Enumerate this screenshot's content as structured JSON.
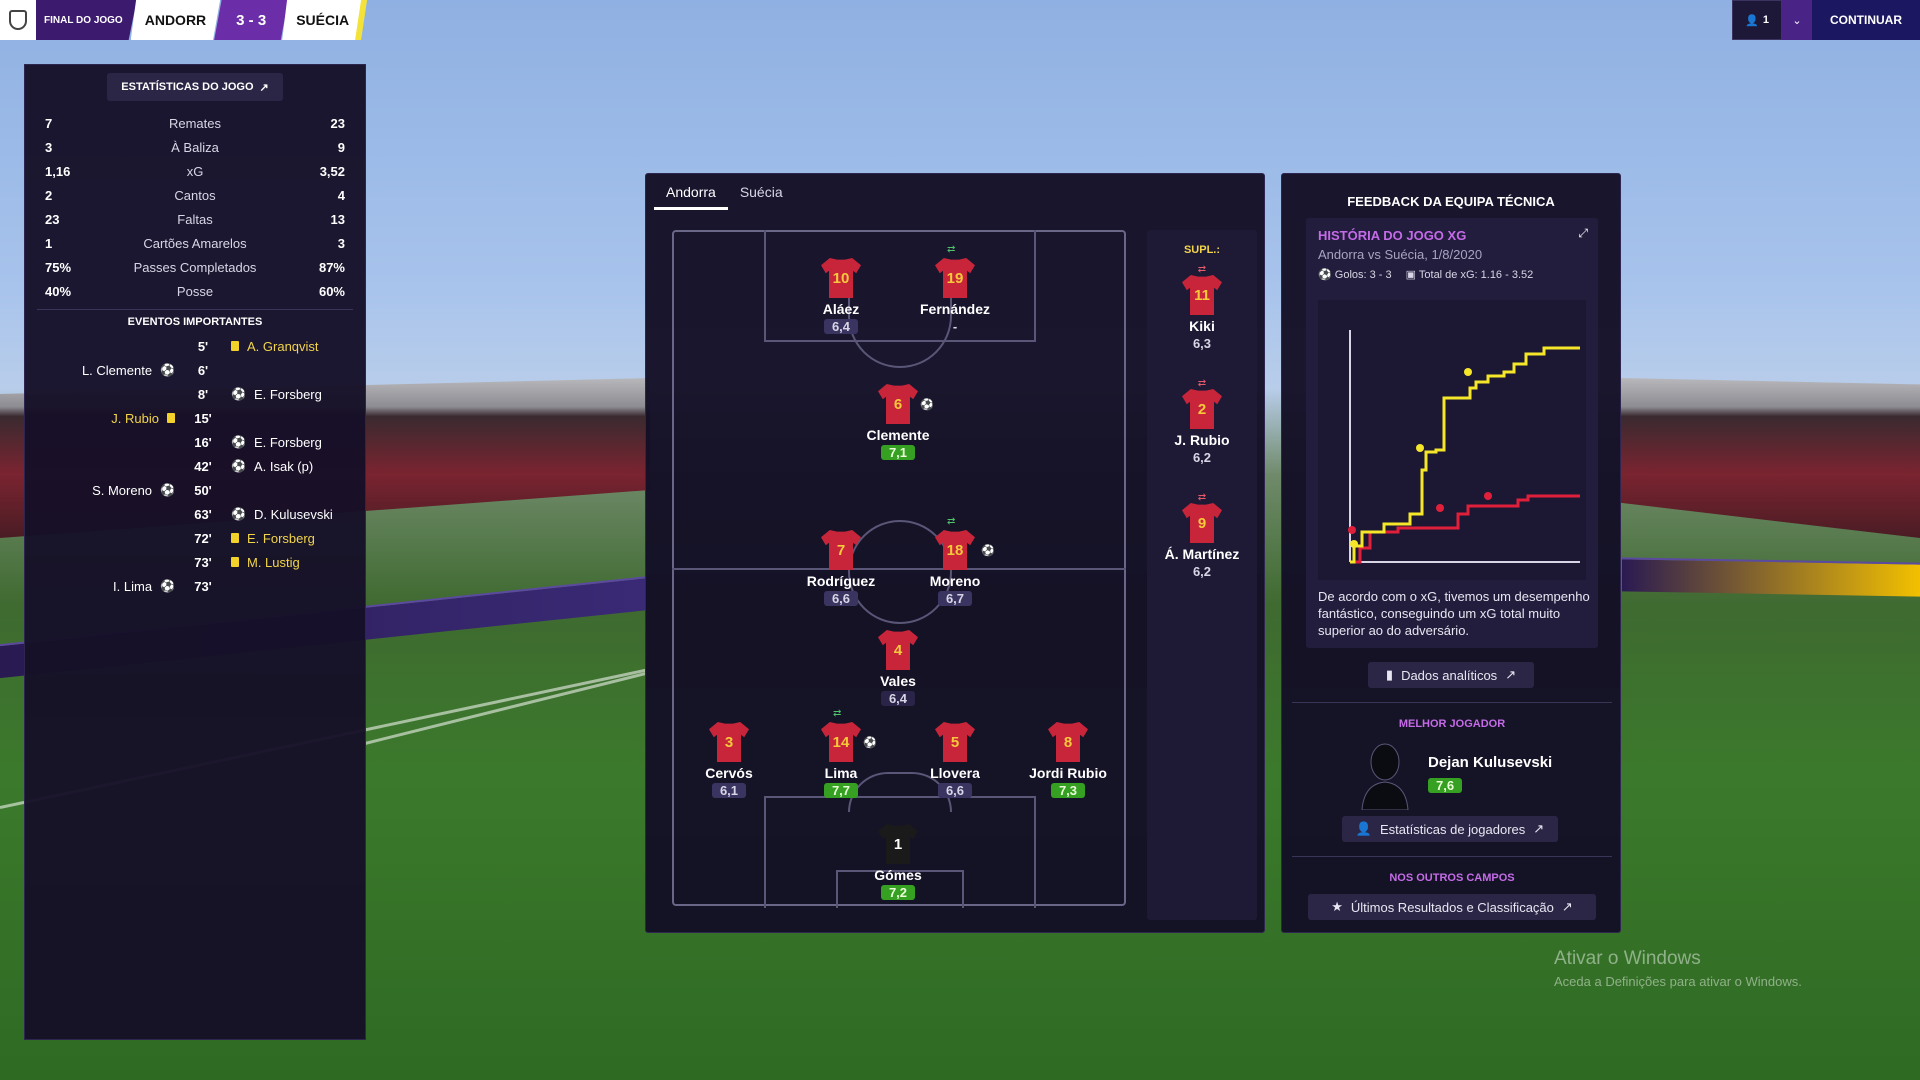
{
  "topbar": {
    "status": "FINAL DO JOGO",
    "home": "ANDORR",
    "score": "3 - 3",
    "away": "SUÉCIA",
    "user_count": "1",
    "continue": "CONTINUAR"
  },
  "left": {
    "title": "ESTATÍSTICAS DO JOGO",
    "stats": [
      {
        "home": "7",
        "label": "Remates",
        "away": "23"
      },
      {
        "home": "3",
        "label": "À Baliza",
        "away": "9"
      },
      {
        "home": "1,16",
        "label": "xG",
        "away": "3,52"
      },
      {
        "home": "2",
        "label": "Cantos",
        "away": "4"
      },
      {
        "home": "23",
        "label": "Faltas",
        "away": "13"
      },
      {
        "home": "1",
        "label": "Cartões Amarelos",
        "away": "3"
      },
      {
        "home": "75%",
        "label": "Passes Completados",
        "away": "87%"
      },
      {
        "home": "40%",
        "label": "Posse",
        "away": "60%"
      }
    ],
    "events_title": "EVENTOS IMPORTANTES",
    "events": [
      {
        "home": "",
        "minute": "5'",
        "away": "A. Granqvist"
      },
      {
        "home": "L. Clemente",
        "minute": "6'",
        "away": ""
      },
      {
        "home": "",
        "minute": "8'",
        "away": "E. Forsberg"
      },
      {
        "home": "J. Rubio",
        "minute": "15'",
        "away": ""
      },
      {
        "home": "",
        "minute": "16'",
        "away": "E. Forsberg"
      },
      {
        "home": "",
        "minute": "42'",
        "away": "A. Isak (p)"
      },
      {
        "home": "S. Moreno",
        "minute": "50'",
        "away": ""
      },
      {
        "home": "",
        "minute": "63'",
        "away": "D. Kulusevski"
      },
      {
        "home": "",
        "minute": "72'",
        "away": "E. Forsberg"
      },
      {
        "home": "",
        "minute": "73'",
        "away": "M. Lustig"
      },
      {
        "home": "I. Lima",
        "minute": "73'",
        "away": ""
      }
    ]
  },
  "mid": {
    "tabs": [
      "Andorra",
      "Suécia"
    ],
    "players": [
      {
        "num": "10",
        "name": "Aláez",
        "rating": "6,4"
      },
      {
        "num": "19",
        "name": "Fernández",
        "rating": "-"
      },
      {
        "num": "6",
        "name": "Clemente",
        "rating": "7,1"
      },
      {
        "num": "7",
        "name": "Rodríguez",
        "rating": "6,6"
      },
      {
        "num": "18",
        "name": "Moreno",
        "rating": "6,7"
      },
      {
        "num": "4",
        "name": "Vales",
        "rating": "6,4"
      },
      {
        "num": "3",
        "name": "Cervós",
        "rating": "6,1"
      },
      {
        "num": "14",
        "name": "Lima",
        "rating": "7,7"
      },
      {
        "num": "5",
        "name": "Llovera",
        "rating": "6,6"
      },
      {
        "num": "8",
        "name": "Jordi Rubio",
        "rating": "7,3"
      },
      {
        "num": "1",
        "name": "Gómes",
        "rating": "7,2"
      }
    ],
    "subs_title": "SUPL.:",
    "subs": [
      {
        "num": "11",
        "name": "Kiki",
        "rating": "6,3"
      },
      {
        "num": "2",
        "name": "J. Rubio",
        "rating": "6,2"
      },
      {
        "num": "9",
        "name": "Á. Martínez",
        "rating": "6,2"
      }
    ]
  },
  "right": {
    "title": "FEEDBACK DA EQUIPA TÉCNICA",
    "xg_title": "HISTÓRIA DO JOGO XG",
    "xg_sub": "Andorra vs Suécia, 1/8/2020",
    "goals_meta": "Golos: 3 - 3",
    "xg_meta": "Total de xG: 1.16 - 3.52",
    "text": "De acordo com o xG, tivemos um desempenho fantástico, conseguindo um xG total muito superior ao do adversário.",
    "analytics_btn": "Dados analíticos",
    "best_title": "MELHOR JOGADOR",
    "best_name": "Dejan Kulusevski",
    "best_rating": "7,6",
    "player_stats_btn": "Estatísticas de jogadores",
    "other_title": "NOS OUTROS CAMPOS",
    "results_btn": "Últimos Resultados e Classificação",
    "home_color": "#e0203a",
    "away_color": "#f5e62a"
  },
  "watermark": {
    "line1": "Ativar o Windows",
    "line2": "Aceda a Definições para ativar o Windows."
  }
}
